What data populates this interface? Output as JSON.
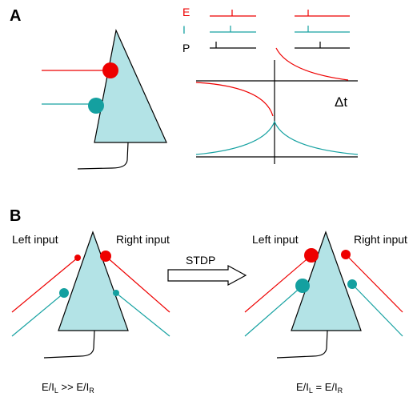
{
  "panel_a": {
    "label": "A",
    "trace_labels": [
      "E",
      "I",
      "P"
    ],
    "axis_label": "Δt"
  },
  "panel_b": {
    "label": "B",
    "left_input": "Left input",
    "right_input": "Right input",
    "arrow_label": "STDP",
    "before": {
      "left_input": "Left input",
      "right_input": "Right input",
      "caption": [
        "E/I",
        "L",
        " >> E/I",
        "R"
      ]
    },
    "after": {
      "left_input": "Left input",
      "right_input": "Right input",
      "caption": [
        "E/I",
        "L",
        " = E/I",
        "R"
      ]
    }
  }
}
